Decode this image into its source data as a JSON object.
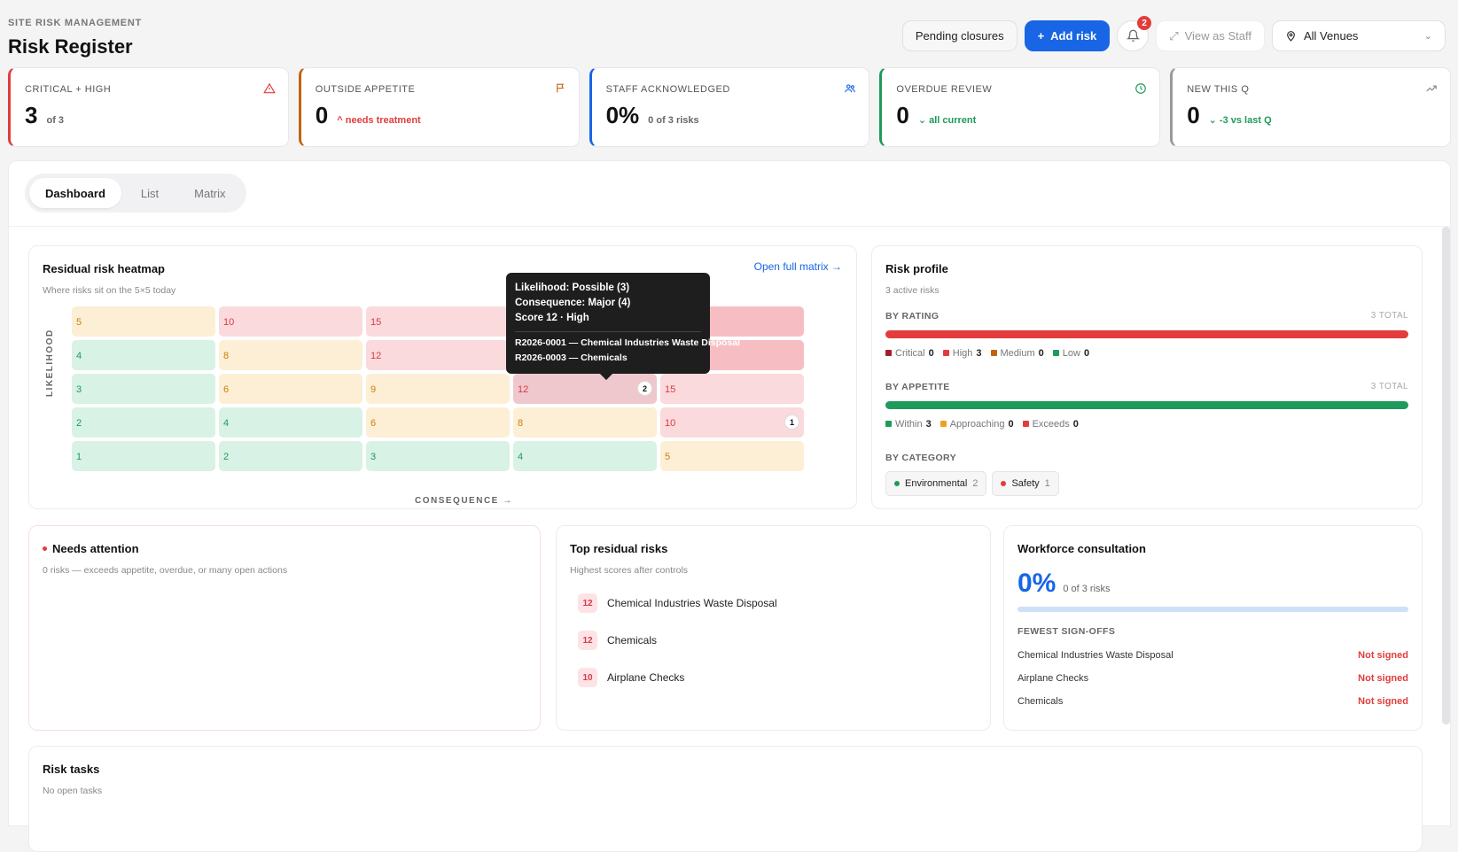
{
  "header": {
    "eyebrow": "SITE RISK MANAGEMENT",
    "title": "Risk Register",
    "pending_label": "Pending closures",
    "add_label": "Add risk",
    "notif_count": "2",
    "view_staff_label": "View as Staff",
    "venue_label": "All Venues"
  },
  "kpis": [
    {
      "label": "CRITICAL + HIGH",
      "value": "3",
      "sub": "of 3",
      "color": "#e23c3c",
      "icon": "warning-icon"
    },
    {
      "label": "OUTSIDE APPETITE",
      "value": "0",
      "sub": "^ needs treatment",
      "color": "#c2620f",
      "icon": "flag-icon"
    },
    {
      "label": "STAFF ACKNOWLEDGED",
      "value": "0%",
      "sub": "0 of 3 risks",
      "color": "#1866e6",
      "icon": "users-icon"
    },
    {
      "label": "OVERDUE REVIEW",
      "value": "0",
      "sub": "⌄ all current",
      "color": "#1f9a5a",
      "icon": "clock-icon"
    },
    {
      "label": "NEW THIS Q",
      "value": "0",
      "sub": "⌄ -3 vs last Q",
      "color": "#999999",
      "icon": "trend-icon"
    }
  ],
  "tabs": [
    "Dashboard",
    "List",
    "Matrix"
  ],
  "heatmap": {
    "title": "Residual risk heatmap",
    "desc": "Where risks sit on the 5×5 today",
    "link": "Open full matrix →",
    "y_axis": "LIKELIHOOD",
    "x_axis": "CONSEQUENCE →",
    "rows": [
      [
        {
          "v": "5",
          "c": "y"
        },
        {
          "v": "10",
          "c": "r"
        },
        {
          "v": "15",
          "c": "r"
        },
        {
          "v": "",
          "c": "rr"
        },
        {
          "v": "",
          "c": "rr"
        }
      ],
      [
        {
          "v": "4",
          "c": "g"
        },
        {
          "v": "8",
          "c": "y"
        },
        {
          "v": "12",
          "c": "r"
        },
        {
          "v": "",
          "c": "rr"
        },
        {
          "v": "",
          "c": "rr"
        }
      ],
      [
        {
          "v": "3",
          "c": "g"
        },
        {
          "v": "6",
          "c": "y"
        },
        {
          "v": "9",
          "c": "y"
        },
        {
          "v": "12",
          "c": "rsel",
          "n": "2"
        },
        {
          "v": "15",
          "c": "r"
        }
      ],
      [
        {
          "v": "2",
          "c": "g"
        },
        {
          "v": "4",
          "c": "g"
        },
        {
          "v": "6",
          "c": "y"
        },
        {
          "v": "8",
          "c": "y"
        },
        {
          "v": "10",
          "c": "r",
          "n": "1"
        }
      ],
      [
        {
          "v": "1",
          "c": "g"
        },
        {
          "v": "2",
          "c": "g"
        },
        {
          "v": "3",
          "c": "g"
        },
        {
          "v": "4",
          "c": "g"
        },
        {
          "v": "5",
          "c": "y"
        }
      ]
    ],
    "tooltip": {
      "l1": "Likelihood: Possible (3)",
      "l2": "Consequence: Major (4)",
      "l3": "Score 12 · High",
      "r1": "R2026-0001 — Chemical Industries Waste Disposal",
      "r2": "R2026-0003 — Chemicals"
    }
  },
  "profile": {
    "title": "Risk profile",
    "desc": "3 active risks",
    "by_rating": "BY RATING",
    "rating_total": "3 TOTAL",
    "rating_legend": [
      {
        "name": "Critical",
        "n": "0",
        "color": "#a31e2a"
      },
      {
        "name": "High",
        "n": "3",
        "color": "#e23c3c"
      },
      {
        "name": "Medium",
        "n": "0",
        "color": "#c2620f"
      },
      {
        "name": "Low",
        "n": "0",
        "color": "#1f9a5a"
      }
    ],
    "by_appetite": "BY APPETITE",
    "appetite_total": "3 TOTAL",
    "appetite_legend": [
      {
        "name": "Within",
        "n": "3",
        "color": "#1f9a5a"
      },
      {
        "name": "Approaching",
        "n": "0",
        "color": "#f0a020"
      },
      {
        "name": "Exceeds",
        "n": "0",
        "color": "#e23c3c"
      }
    ],
    "by_category": "BY CATEGORY",
    "categories": [
      {
        "name": "Environmental",
        "n": "2",
        "color": "#1f9a5a"
      },
      {
        "name": "Safety",
        "n": "1",
        "color": "#e23c3c"
      }
    ]
  },
  "attention": {
    "title": "Needs attention",
    "desc": "0 risks — exceeds appetite, overdue, or many open actions"
  },
  "top_risks": {
    "title": "Top residual risks",
    "desc": "Highest scores after controls",
    "items": [
      {
        "score": "12",
        "name": "Chemical Industries Waste Disposal"
      },
      {
        "score": "12",
        "name": "Chemicals"
      },
      {
        "score": "10",
        "name": "Airplane Checks"
      }
    ]
  },
  "workforce": {
    "title": "Workforce consultation",
    "pct": "0%",
    "sub": "0 of 3 risks",
    "fewest": "FEWEST SIGN-OFFS",
    "items": [
      {
        "name": "Chemical Industries Waste Disposal",
        "status": "Not signed"
      },
      {
        "name": "Airplane Checks",
        "status": "Not signed"
      },
      {
        "name": "Chemicals",
        "status": "Not signed"
      }
    ]
  },
  "tasks": {
    "title": "Risk tasks",
    "desc": "No open tasks"
  }
}
